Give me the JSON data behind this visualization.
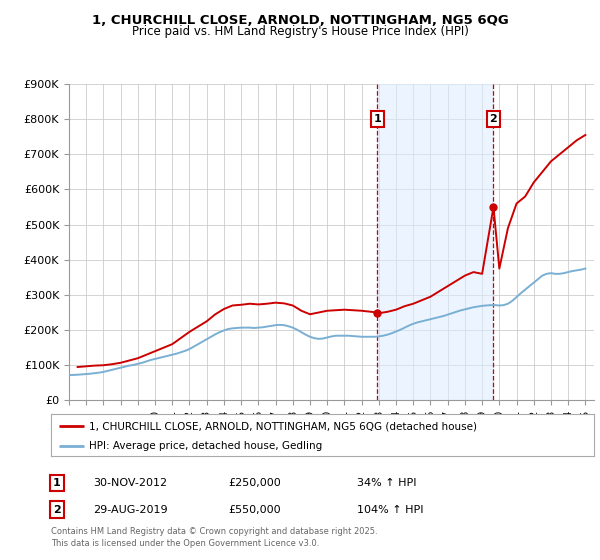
{
  "title_line1": "1, CHURCHILL CLOSE, ARNOLD, NOTTINGHAM, NG5 6QG",
  "title_line2": "Price paid vs. HM Land Registry's House Price Index (HPI)",
  "ylim": [
    0,
    900000
  ],
  "xlim_start": 1995.0,
  "xlim_end": 2025.5,
  "yticks": [
    0,
    100000,
    200000,
    300000,
    400000,
    500000,
    600000,
    700000,
    800000,
    900000
  ],
  "ytick_labels": [
    "£0",
    "£100K",
    "£200K",
    "£300K",
    "£400K",
    "£500K",
    "£600K",
    "£700K",
    "£800K",
    "£900K"
  ],
  "xticks": [
    1995,
    1996,
    1997,
    1998,
    1999,
    2000,
    2001,
    2002,
    2003,
    2004,
    2005,
    2006,
    2007,
    2008,
    2009,
    2010,
    2011,
    2012,
    2013,
    2014,
    2015,
    2016,
    2017,
    2018,
    2019,
    2020,
    2021,
    2022,
    2023,
    2024,
    2025
  ],
  "background_color": "#ffffff",
  "plot_bg_color": "#ffffff",
  "grid_color": "#cccccc",
  "annotation_bg_color": "#ddeeff",
  "sale1_x": 2012.92,
  "sale1_y": 250000,
  "sale1_label": "1",
  "sale1_date": "30-NOV-2012",
  "sale1_price": "£250,000",
  "sale1_hpi": "34% ↑ HPI",
  "sale2_x": 2019.66,
  "sale2_y": 550000,
  "sale2_label": "2",
  "sale2_date": "29-AUG-2019",
  "sale2_price": "£550,000",
  "sale2_hpi": "104% ↑ HPI",
  "line1_color": "#cc0000",
  "line2_color": "#7aafd4",
  "legend_line1": "1, CHURCHILL CLOSE, ARNOLD, NOTTINGHAM, NG5 6QG (detached house)",
  "legend_line2": "HPI: Average price, detached house, Gedling",
  "footnote_line1": "Contains HM Land Registry data © Crown copyright and database right 2025.",
  "footnote_line2": "This data is licensed under the Open Government Licence v3.0.",
  "hpi_x": [
    1995.0,
    1995.25,
    1995.5,
    1995.75,
    1996.0,
    1996.25,
    1996.5,
    1996.75,
    1997.0,
    1997.25,
    1997.5,
    1997.75,
    1998.0,
    1998.25,
    1998.5,
    1998.75,
    1999.0,
    1999.25,
    1999.5,
    1999.75,
    2000.0,
    2000.25,
    2000.5,
    2000.75,
    2001.0,
    2001.25,
    2001.5,
    2001.75,
    2002.0,
    2002.25,
    2002.5,
    2002.75,
    2003.0,
    2003.25,
    2003.5,
    2003.75,
    2004.0,
    2004.25,
    2004.5,
    2004.75,
    2005.0,
    2005.25,
    2005.5,
    2005.75,
    2006.0,
    2006.25,
    2006.5,
    2006.75,
    2007.0,
    2007.25,
    2007.5,
    2007.75,
    2008.0,
    2008.25,
    2008.5,
    2008.75,
    2009.0,
    2009.25,
    2009.5,
    2009.75,
    2010.0,
    2010.25,
    2010.5,
    2010.75,
    2011.0,
    2011.25,
    2011.5,
    2011.75,
    2012.0,
    2012.25,
    2012.5,
    2012.75,
    2013.0,
    2013.25,
    2013.5,
    2013.75,
    2014.0,
    2014.25,
    2014.5,
    2014.75,
    2015.0,
    2015.25,
    2015.5,
    2015.75,
    2016.0,
    2016.25,
    2016.5,
    2016.75,
    2017.0,
    2017.25,
    2017.5,
    2017.75,
    2018.0,
    2018.25,
    2018.5,
    2018.75,
    2019.0,
    2019.25,
    2019.5,
    2019.75,
    2020.0,
    2020.25,
    2020.5,
    2020.75,
    2021.0,
    2021.25,
    2021.5,
    2021.75,
    2022.0,
    2022.25,
    2022.5,
    2022.75,
    2023.0,
    2023.25,
    2023.5,
    2023.75,
    2024.0,
    2024.25,
    2024.5,
    2024.75,
    2025.0
  ],
  "hpi_y": [
    72000,
    72500,
    73000,
    74000,
    75000,
    76000,
    77500,
    79000,
    81000,
    84000,
    87000,
    90000,
    93000,
    96000,
    99000,
    101000,
    104000,
    107000,
    111000,
    115000,
    118000,
    121000,
    124000,
    127000,
    130000,
    133000,
    137000,
    141000,
    146000,
    153000,
    160000,
    167000,
    174000,
    181000,
    188000,
    194000,
    199000,
    203000,
    205000,
    206000,
    207000,
    207000,
    207000,
    206000,
    207000,
    208000,
    210000,
    212000,
    214000,
    215000,
    214000,
    211000,
    207000,
    201000,
    194000,
    187000,
    181000,
    177000,
    175000,
    176000,
    179000,
    182000,
    184000,
    184000,
    184000,
    184000,
    183000,
    182000,
    181000,
    181000,
    181000,
    181000,
    182000,
    184000,
    187000,
    191000,
    196000,
    201000,
    207000,
    213000,
    218000,
    222000,
    225000,
    228000,
    231000,
    234000,
    237000,
    240000,
    244000,
    248000,
    252000,
    256000,
    259000,
    262000,
    265000,
    267000,
    269000,
    270000,
    271000,
    271000,
    270000,
    271000,
    275000,
    283000,
    294000,
    305000,
    315000,
    325000,
    335000,
    345000,
    355000,
    360000,
    362000,
    360000,
    360000,
    362000,
    365000,
    368000,
    370000,
    372000,
    375000
  ],
  "price_x": [
    1995.5,
    1996.0,
    1996.5,
    1997.0,
    1997.5,
    1998.0,
    1999.0,
    2000.0,
    2001.0,
    2002.0,
    2003.0,
    2003.5,
    2004.0,
    2004.5,
    2005.0,
    2005.5,
    2006.0,
    2006.5,
    2007.0,
    2007.5,
    2008.0,
    2008.5,
    2009.0,
    2009.5,
    2010.0,
    2011.0,
    2012.0,
    2012.92,
    2013.0,
    2013.5,
    2014.0,
    2014.5,
    2015.0,
    2015.5,
    2016.0,
    2016.5,
    2017.0,
    2017.5,
    2018.0,
    2018.5,
    2019.0,
    2019.66,
    2020.0,
    2020.5,
    2021.0,
    2021.5,
    2022.0,
    2022.5,
    2023.0,
    2023.5,
    2024.0,
    2024.5,
    2025.0
  ],
  "price_y": [
    95000,
    97000,
    99000,
    100000,
    103000,
    107000,
    120000,
    140000,
    160000,
    195000,
    225000,
    245000,
    260000,
    270000,
    272000,
    275000,
    273000,
    275000,
    278000,
    276000,
    270000,
    255000,
    245000,
    250000,
    255000,
    258000,
    255000,
    250000,
    248000,
    252000,
    258000,
    268000,
    275000,
    285000,
    295000,
    310000,
    325000,
    340000,
    355000,
    365000,
    360000,
    550000,
    375000,
    490000,
    560000,
    580000,
    620000,
    650000,
    680000,
    700000,
    720000,
    740000,
    755000
  ]
}
